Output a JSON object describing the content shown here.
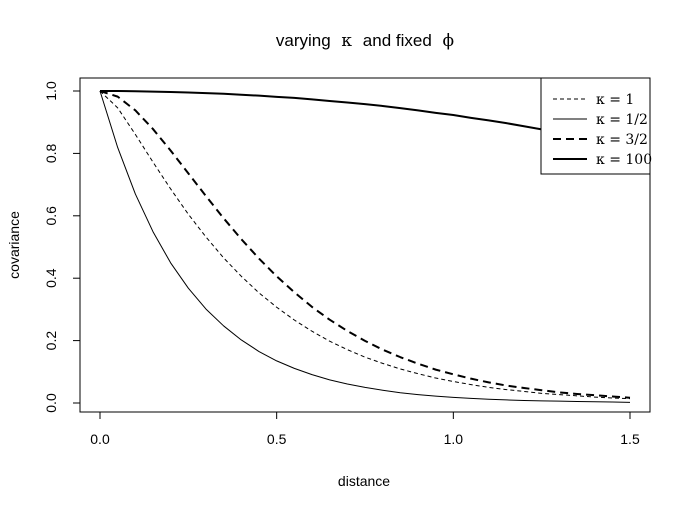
{
  "chart_data": {
    "type": "line",
    "title_prefix": "varying",
    "title_kappa": "κ",
    "title_middle": "and fixed",
    "title_phi": "ϕ",
    "xlabel": "distance",
    "ylabel": "covariance",
    "xlim": [
      0,
      1.5
    ],
    "ylim": [
      0,
      1.0
    ],
    "x_ticks": [
      {
        "value": 0.0,
        "label": "0.0"
      },
      {
        "value": 0.5,
        "label": "0.5"
      },
      {
        "value": 1.0,
        "label": "1.0"
      },
      {
        "value": 1.5,
        "label": "1.5"
      }
    ],
    "y_ticks": [
      {
        "value": 0.0,
        "label": "0.0"
      },
      {
        "value": 0.2,
        "label": "0.2"
      },
      {
        "value": 0.4,
        "label": "0.4"
      },
      {
        "value": 0.6,
        "label": "0.6"
      },
      {
        "value": 0.8,
        "label": "0.8"
      },
      {
        "value": 1.0,
        "label": "1.0"
      }
    ],
    "grid": false,
    "legend_position": "top-right",
    "x": [
      0.0,
      0.05,
      0.1,
      0.15,
      0.2,
      0.25,
      0.3,
      0.35,
      0.4,
      0.45,
      0.5,
      0.55,
      0.6,
      0.65,
      0.7,
      0.75,
      0.8,
      0.85,
      0.9,
      0.95,
      1.0,
      1.05,
      1.1,
      1.15,
      1.2,
      1.25,
      1.3,
      1.35,
      1.4,
      1.45,
      1.5
    ],
    "series": [
      {
        "name": "κ = 1",
        "dash": "dashed",
        "stroke_width": 1,
        "values": [
          1.0,
          0.946,
          0.861,
          0.772,
          0.686,
          0.605,
          0.532,
          0.465,
          0.406,
          0.353,
          0.307,
          0.266,
          0.23,
          0.198,
          0.171,
          0.147,
          0.127,
          0.109,
          0.094,
          0.08,
          0.069,
          0.059,
          0.05,
          0.043,
          0.037,
          0.031,
          0.027,
          0.023,
          0.019,
          0.016,
          0.014
        ]
      },
      {
        "name": "κ = 1/2",
        "dash": "solid",
        "stroke_width": 1,
        "values": [
          1.0,
          0.819,
          0.67,
          0.549,
          0.449,
          0.368,
          0.301,
          0.247,
          0.202,
          0.165,
          0.135,
          0.111,
          0.091,
          0.074,
          0.061,
          0.05,
          0.041,
          0.033,
          0.027,
          0.022,
          0.018,
          0.015,
          0.012,
          0.01,
          0.008,
          0.007,
          0.006,
          0.005,
          0.004,
          0.003,
          0.002
        ]
      },
      {
        "name": "κ = 3/2",
        "dash": "dashed",
        "stroke_width": 2,
        "values": [
          1.0,
          0.982,
          0.938,
          0.878,
          0.809,
          0.736,
          0.663,
          0.592,
          0.525,
          0.463,
          0.406,
          0.355,
          0.308,
          0.267,
          0.231,
          0.199,
          0.171,
          0.147,
          0.126,
          0.107,
          0.092,
          0.078,
          0.066,
          0.056,
          0.048,
          0.041,
          0.034,
          0.029,
          0.025,
          0.021,
          0.017
        ]
      },
      {
        "name": "κ = 100",
        "dash": "solid",
        "stroke_width": 2,
        "values": [
          1.0,
          1.0,
          0.999,
          0.998,
          0.997,
          0.995,
          0.993,
          0.991,
          0.988,
          0.985,
          0.981,
          0.978,
          0.973,
          0.968,
          0.963,
          0.958,
          0.952,
          0.945,
          0.938,
          0.93,
          0.923,
          0.914,
          0.906,
          0.897,
          0.887,
          0.877,
          0.867,
          0.856,
          0.845,
          0.833,
          0.821
        ]
      }
    ]
  }
}
